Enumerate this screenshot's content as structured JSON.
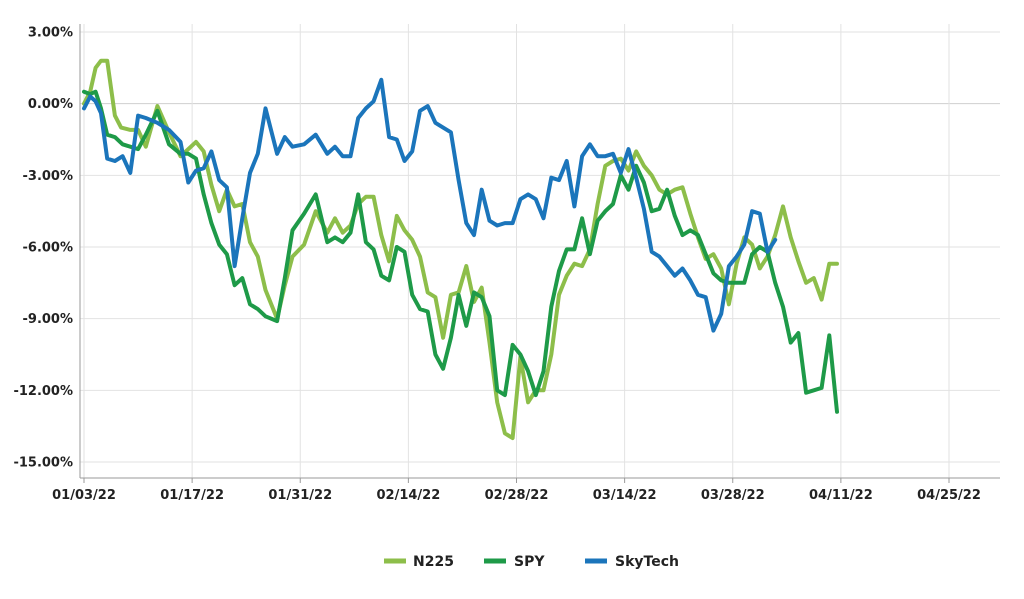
{
  "chart_data": {
    "type": "line",
    "title": "",
    "xlabel": "",
    "ylabel": "",
    "ylim": [
      -15.5,
      3
    ],
    "grid": true,
    "legend_position": "bottom",
    "y_tick_values": [
      3,
      0,
      -3,
      -6,
      -9,
      -12,
      -15
    ],
    "y_tick_labels": [
      "3.00%",
      "0.00%",
      "-3.00%",
      "-6.00%",
      "-9.00%",
      "-12.00%",
      "-15.00%"
    ],
    "x_tick_labels": [
      "01/03/22",
      "01/17/22",
      "01/31/22",
      "02/14/22",
      "02/28/22",
      "03/14/22",
      "03/28/22",
      "04/11/22",
      "04/25/22"
    ],
    "x_tick_days": [
      0,
      14,
      28,
      42,
      56,
      70,
      84,
      98,
      112
    ],
    "x_range_days": [
      0,
      118
    ],
    "series": [
      {
        "name": "N225",
        "color": "#8dbe4a",
        "values": [
          [
            0,
            0.0
          ],
          [
            0.8,
            0.5
          ],
          [
            1.5,
            1.5
          ],
          [
            2.2,
            1.8
          ],
          [
            3,
            1.8
          ],
          [
            4,
            -0.5
          ],
          [
            4.8,
            -1.0
          ],
          [
            6,
            -1.1
          ],
          [
            7,
            -1.1
          ],
          [
            8,
            -1.8
          ],
          [
            9.5,
            -0.1
          ],
          [
            11,
            -1.2
          ],
          [
            12.5,
            -2.2
          ],
          [
            13.5,
            -1.9
          ],
          [
            14.5,
            -1.6
          ],
          [
            15.5,
            -2.0
          ],
          [
            16.5,
            -3.4
          ],
          [
            17.5,
            -4.5
          ],
          [
            18.5,
            -3.6
          ],
          [
            19.5,
            -4.3
          ],
          [
            20.5,
            -4.2
          ],
          [
            21.5,
            -5.8
          ],
          [
            22.5,
            -6.4
          ],
          [
            23.5,
            -7.8
          ],
          [
            25,
            -9.0
          ],
          [
            26,
            -7.6
          ],
          [
            27,
            -6.4
          ],
          [
            28.5,
            -5.9
          ],
          [
            30,
            -4.5
          ],
          [
            31.5,
            -5.4
          ],
          [
            32.5,
            -4.8
          ],
          [
            33.5,
            -5.4
          ],
          [
            34.5,
            -5.1
          ],
          [
            35.5,
            -4.2
          ],
          [
            36.5,
            -3.9
          ],
          [
            37.5,
            -3.9
          ],
          [
            38.5,
            -5.5
          ],
          [
            39.5,
            -6.6
          ],
          [
            40.5,
            -4.7
          ],
          [
            41.5,
            -5.3
          ],
          [
            42.5,
            -5.7
          ],
          [
            43.5,
            -6.4
          ],
          [
            44.5,
            -7.9
          ],
          [
            45.5,
            -8.1
          ],
          [
            46.5,
            -9.8
          ],
          [
            47.5,
            -8.0
          ],
          [
            48.5,
            -7.9
          ],
          [
            49.5,
            -6.8
          ],
          [
            50.5,
            -8.3
          ],
          [
            51.5,
            -7.7
          ],
          [
            52.5,
            -10.0
          ],
          [
            53.5,
            -12.5
          ],
          [
            54.5,
            -13.8
          ],
          [
            55.5,
            -14.0
          ],
          [
            56.5,
            -10.6
          ],
          [
            57.5,
            -12.5
          ],
          [
            58.5,
            -12.0
          ],
          [
            59.5,
            -12.0
          ],
          [
            60.5,
            -10.5
          ],
          [
            61.5,
            -8.0
          ],
          [
            62.5,
            -7.2
          ],
          [
            63.5,
            -6.7
          ],
          [
            64.5,
            -6.8
          ],
          [
            65.5,
            -6.1
          ],
          [
            66.5,
            -4.2
          ],
          [
            67.5,
            -2.6
          ],
          [
            68.5,
            -2.4
          ],
          [
            69.5,
            -2.3
          ],
          [
            70.5,
            -2.8
          ],
          [
            71.5,
            -2.0
          ],
          [
            72.5,
            -2.6
          ],
          [
            73.5,
            -3.0
          ],
          [
            74.5,
            -3.6
          ],
          [
            75.5,
            -3.8
          ],
          [
            76.5,
            -3.6
          ],
          [
            77.5,
            -3.5
          ],
          [
            78.5,
            -4.6
          ],
          [
            79.5,
            -5.6
          ],
          [
            80.5,
            -6.5
          ],
          [
            81.5,
            -6.3
          ],
          [
            82.5,
            -6.9
          ],
          [
            83.5,
            -8.4
          ],
          [
            84.5,
            -6.7
          ],
          [
            85.5,
            -5.6
          ],
          [
            86.5,
            -5.9
          ],
          [
            87.5,
            -6.9
          ],
          [
            88.5,
            -6.4
          ],
          [
            89.5,
            -5.5
          ],
          [
            90.5,
            -4.3
          ],
          [
            91.5,
            -5.6
          ],
          [
            92.5,
            -6.6
          ],
          [
            93.5,
            -7.5
          ],
          [
            94.5,
            -7.3
          ],
          [
            95.5,
            -8.2
          ],
          [
            96.5,
            -6.7
          ],
          [
            97.5,
            -6.7
          ]
        ]
      },
      {
        "name": "SPY",
        "color": "#1e9a48",
        "values": [
          [
            0,
            0.5
          ],
          [
            0.8,
            0.4
          ],
          [
            1.5,
            0.5
          ],
          [
            2.2,
            -0.2
          ],
          [
            3,
            -1.3
          ],
          [
            4,
            -1.4
          ],
          [
            5,
            -1.7
          ],
          [
            6,
            -1.8
          ],
          [
            7,
            -1.9
          ],
          [
            8,
            -1.3
          ],
          [
            9.5,
            -0.3
          ],
          [
            11,
            -1.7
          ],
          [
            12.5,
            -2.1
          ],
          [
            13.5,
            -2.1
          ],
          [
            14.5,
            -2.3
          ],
          [
            15.5,
            -3.8
          ],
          [
            16.5,
            -5.0
          ],
          [
            17.5,
            -5.9
          ],
          [
            18.5,
            -6.3
          ],
          [
            19.5,
            -7.6
          ],
          [
            20.5,
            -7.3
          ],
          [
            21.5,
            -8.4
          ],
          [
            22.5,
            -8.6
          ],
          [
            23.5,
            -8.9
          ],
          [
            25,
            -9.1
          ],
          [
            26,
            -7.3
          ],
          [
            27,
            -5.3
          ],
          [
            28.5,
            -4.6
          ],
          [
            30,
            -3.8
          ],
          [
            31.5,
            -5.8
          ],
          [
            32.5,
            -5.6
          ],
          [
            33.5,
            -5.8
          ],
          [
            34.5,
            -5.4
          ],
          [
            35.5,
            -3.8
          ],
          [
            36.5,
            -5.8
          ],
          [
            37.5,
            -6.1
          ],
          [
            38.5,
            -7.2
          ],
          [
            39.5,
            -7.4
          ],
          [
            40.5,
            -6.0
          ],
          [
            41.5,
            -6.2
          ],
          [
            42.5,
            -8.0
          ],
          [
            43.5,
            -8.6
          ],
          [
            44.5,
            -8.7
          ],
          [
            45.5,
            -10.5
          ],
          [
            46.5,
            -11.1
          ],
          [
            47.5,
            -9.8
          ],
          [
            48.5,
            -8.0
          ],
          [
            49.5,
            -9.3
          ],
          [
            50.5,
            -7.9
          ],
          [
            51.5,
            -8.1
          ],
          [
            52.5,
            -8.9
          ],
          [
            53.5,
            -12.0
          ],
          [
            54.5,
            -12.2
          ],
          [
            55.5,
            -10.1
          ],
          [
            56.5,
            -10.5
          ],
          [
            57.5,
            -11.2
          ],
          [
            58.5,
            -12.2
          ],
          [
            59.5,
            -11.2
          ],
          [
            60.5,
            -8.5
          ],
          [
            61.5,
            -7.0
          ],
          [
            62.5,
            -6.1
          ],
          [
            63.5,
            -6.1
          ],
          [
            64.5,
            -4.8
          ],
          [
            65.5,
            -6.3
          ],
          [
            66.5,
            -4.9
          ],
          [
            67.5,
            -4.5
          ],
          [
            68.5,
            -4.2
          ],
          [
            69.5,
            -3.0
          ],
          [
            70.5,
            -3.6
          ],
          [
            71.5,
            -2.6
          ],
          [
            72.5,
            -3.3
          ],
          [
            73.5,
            -4.5
          ],
          [
            74.5,
            -4.4
          ],
          [
            75.5,
            -3.6
          ],
          [
            76.5,
            -4.7
          ],
          [
            77.5,
            -5.5
          ],
          [
            78.5,
            -5.3
          ],
          [
            79.5,
            -5.5
          ],
          [
            80.5,
            -6.3
          ],
          [
            81.5,
            -7.1
          ],
          [
            82.5,
            -7.4
          ],
          [
            83.5,
            -7.5
          ],
          [
            84.5,
            -7.5
          ],
          [
            85.5,
            -7.5
          ],
          [
            86.5,
            -6.3
          ],
          [
            87.5,
            -6.0
          ],
          [
            88.5,
            -6.2
          ],
          [
            89.5,
            -7.5
          ],
          [
            90.5,
            -8.5
          ],
          [
            91.5,
            -10.0
          ],
          [
            92.5,
            -9.6
          ],
          [
            93.5,
            -12.1
          ],
          [
            94.5,
            -12.0
          ],
          [
            95.5,
            -11.9
          ],
          [
            96.5,
            -9.7
          ],
          [
            97.5,
            -12.9
          ]
        ]
      },
      {
        "name": "SkyTech",
        "color": "#1b75bb",
        "values": [
          [
            0,
            -0.2
          ],
          [
            0.8,
            0.3
          ],
          [
            1.5,
            0.1
          ],
          [
            2.2,
            -0.4
          ],
          [
            3,
            -2.3
          ],
          [
            4,
            -2.4
          ],
          [
            5,
            -2.2
          ],
          [
            6,
            -2.9
          ],
          [
            7,
            -0.5
          ],
          [
            8,
            -0.6
          ],
          [
            9.5,
            -0.8
          ],
          [
            11,
            -1.1
          ],
          [
            12.5,
            -1.6
          ],
          [
            13.5,
            -3.3
          ],
          [
            14.5,
            -2.8
          ],
          [
            15.5,
            -2.7
          ],
          [
            16.5,
            -2.0
          ],
          [
            17.5,
            -3.2
          ],
          [
            18.5,
            -3.5
          ],
          [
            19.5,
            -6.8
          ],
          [
            20.5,
            -4.8
          ],
          [
            21.5,
            -2.9
          ],
          [
            22.5,
            -2.1
          ],
          [
            23.5,
            -0.2
          ],
          [
            25,
            -2.1
          ],
          [
            26,
            -1.4
          ],
          [
            27,
            -1.8
          ],
          [
            28.5,
            -1.7
          ],
          [
            30,
            -1.3
          ],
          [
            31.5,
            -2.1
          ],
          [
            32.5,
            -1.8
          ],
          [
            33.5,
            -2.2
          ],
          [
            34.5,
            -2.2
          ],
          [
            35.5,
            -0.6
          ],
          [
            36.5,
            -0.2
          ],
          [
            37.5,
            0.1
          ],
          [
            38.5,
            1.0
          ],
          [
            39.5,
            -1.4
          ],
          [
            40.5,
            -1.5
          ],
          [
            41.5,
            -2.4
          ],
          [
            42.5,
            -2.0
          ],
          [
            43.5,
            -0.3
          ],
          [
            44.5,
            -0.1
          ],
          [
            45.5,
            -0.8
          ],
          [
            46.5,
            -1.0
          ],
          [
            47.5,
            -1.2
          ],
          [
            48.5,
            -3.2
          ],
          [
            49.5,
            -5.0
          ],
          [
            50.5,
            -5.5
          ],
          [
            51.5,
            -3.6
          ],
          [
            52.5,
            -4.9
          ],
          [
            53.5,
            -5.1
          ],
          [
            54.5,
            -5.0
          ],
          [
            55.5,
            -5.0
          ],
          [
            56.5,
            -4.0
          ],
          [
            57.5,
            -3.8
          ],
          [
            58.5,
            -4.0
          ],
          [
            59.5,
            -4.8
          ],
          [
            60.5,
            -3.1
          ],
          [
            61.5,
            -3.2
          ],
          [
            62.5,
            -2.4
          ],
          [
            63.5,
            -4.3
          ],
          [
            64.5,
            -2.2
          ],
          [
            65.5,
            -1.7
          ],
          [
            66.5,
            -2.2
          ],
          [
            67.5,
            -2.2
          ],
          [
            68.5,
            -2.1
          ],
          [
            69.5,
            -2.9
          ],
          [
            70.5,
            -1.9
          ],
          [
            71.5,
            -3.1
          ],
          [
            72.5,
            -4.4
          ],
          [
            73.5,
            -6.2
          ],
          [
            74.5,
            -6.4
          ],
          [
            75.5,
            -6.8
          ],
          [
            76.5,
            -7.2
          ],
          [
            77.5,
            -6.9
          ],
          [
            78.5,
            -7.4
          ],
          [
            79.5,
            -8.0
          ],
          [
            80.5,
            -8.1
          ],
          [
            81.5,
            -9.5
          ],
          [
            82.5,
            -8.8
          ],
          [
            83.5,
            -6.8
          ],
          [
            84.5,
            -6.4
          ],
          [
            85.5,
            -5.9
          ],
          [
            86.5,
            -4.5
          ],
          [
            87.5,
            -4.6
          ],
          [
            88.5,
            -6.2
          ],
          [
            89.5,
            -5.7
          ]
        ]
      }
    ]
  }
}
